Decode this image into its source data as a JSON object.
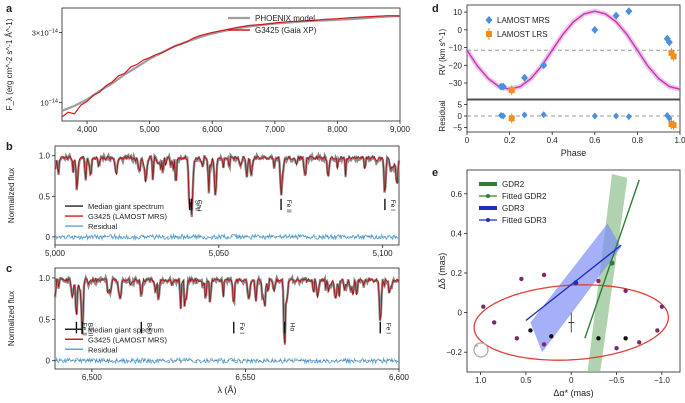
{
  "colors": {
    "model": "#9e9e9e",
    "obs": "#d7191c",
    "median": "#1a1a1a",
    "resid": "#56a7dd",
    "mrs": "#4a90e2",
    "lrs": "#f28e1c",
    "orbit": "#e0403a",
    "gdr2": "#2e7d32",
    "gdr2_fill": "#8fbf8f",
    "gdr3": "#1f2fbf",
    "gdr3_fill": "#7f8ff5",
    "rvfit": "#d62fb0"
  },
  "panels": [
    {
      "key": "a",
      "label": "a",
      "chart_data": {
        "type": "line",
        "xlim": [
          3600,
          9000
        ],
        "ylim_log": [
          7.5e-15,
          4.4e-14
        ],
        "xticks": [
          4000,
          5000,
          6000,
          7000,
          8000,
          9000
        ],
        "xtick_labels": [
          "4,000",
          "5,000",
          "6,000",
          "7,000",
          "8,000",
          "9,000"
        ],
        "yticks": [
          1e-14,
          3e-14
        ],
        "ytick_labels": [
          "10^-14",
          "3×10^-14"
        ],
        "ylabel": "F_λ (erg cm^-2 s^-1 Å^-1)",
        "legend": [
          "PHOENIX model",
          "G3425 (Gaia XP)"
        ],
        "series": [
          {
            "name": "PHOENIX model",
            "x": [
              3600,
              3800,
              4000,
              4200,
              4400,
              4600,
              4800,
              5000,
              5200,
              5400,
              5600,
              5800,
              6000,
              6200,
              6400,
              6600,
              6800,
              7000,
              7200,
              7400,
              7600,
              7800,
              8000,
              8200,
              8400,
              8600,
              8800,
              9000
            ],
            "y": [
              8.8e-15,
              9.5e-15,
              1.05e-14,
              1.2e-14,
              1.35e-14,
              1.55e-14,
              1.75e-14,
              1.98e-14,
              2.2e-14,
              2.42e-14,
              2.6e-14,
              2.78e-14,
              2.95e-14,
              3.08e-14,
              3.2e-14,
              3.3e-14,
              3.38e-14,
              3.45e-14,
              3.5e-14,
              3.55e-14,
              3.6e-14,
              3.62e-14,
              3.66e-14,
              3.7e-14,
              3.74e-14,
              3.8e-14,
              3.85e-14,
              3.88e-14
            ]
          },
          {
            "name": "G3425 (Gaia XP)",
            "x": [
              3600,
              3700,
              3800,
              3900,
              4000,
              4100,
              4200,
              4300,
              4400,
              4500,
              4600,
              4700,
              4800,
              4900,
              5000,
              5100,
              5200,
              5300,
              5400,
              5500,
              5600,
              5700,
              5800,
              6000,
              6200,
              6400,
              6600,
              6800,
              7000,
              7200,
              7400,
              7600,
              7800,
              8000,
              8200,
              8400,
              8600,
              8800,
              9000
            ],
            "y": [
              8e-15,
              8.6e-15,
              8.4e-15,
              9.6e-15,
              1.02e-14,
              1.12e-14,
              1.18e-14,
              1.3e-14,
              1.38e-14,
              1.52e-14,
              1.58e-14,
              1.75e-14,
              1.82e-14,
              1.95e-14,
              2.02e-14,
              2.12e-14,
              2.18e-14,
              2.3e-14,
              2.42e-14,
              2.5e-14,
              2.6e-14,
              2.75e-14,
              2.85e-14,
              3e-14,
              3.12e-14,
              3.25e-14,
              3.35e-14,
              3.4e-14,
              3.48e-14,
              3.55e-14,
              3.58e-14,
              3.62e-14,
              3.68e-14,
              3.72e-14,
              3.78e-14,
              3.82e-14,
              3.86e-14,
              3.9e-14,
              3.88e-14
            ]
          }
        ]
      }
    },
    {
      "key": "b",
      "label": "b",
      "chart_data": {
        "type": "line",
        "xlim": [
          5000,
          5105
        ],
        "ylim": [
          -0.1,
          1.12
        ],
        "xticks": [
          5000,
          5050,
          5100
        ],
        "xtick_labels": [
          "5,000",
          "5,050",
          "5,100"
        ],
        "yticks": [
          0,
          0.5,
          1.0
        ],
        "ytick_labels": [
          "0",
          "0.5",
          "1.0"
        ],
        "ylabel": "Normalized flux",
        "legend": [
          "Median giant spectrum",
          "G3425 (LAMOST MRS)",
          "Residual"
        ],
        "lines": [
          {
            "x": 5041.1,
            "depth": 0.45,
            "label": "Si II"
          },
          {
            "x": 5041.7,
            "depth": 0.5,
            "label": "Ca I"
          },
          {
            "x": 5069.0,
            "depth": 0.4,
            "label": "Fe II"
          },
          {
            "x": 5100.7,
            "depth": 0.45,
            "label": "Fe I"
          }
        ]
      }
    },
    {
      "key": "c",
      "label": "c",
      "chart_data": {
        "type": "line",
        "xlim": [
          6488,
          6600
        ],
        "ylim": [
          -0.1,
          1.12
        ],
        "xticks": [
          6500,
          6550,
          6600
        ],
        "xtick_labels": [
          "6,500",
          "6,550",
          "6,600"
        ],
        "yticks": [
          0,
          0.5,
          1.0
        ],
        "ytick_labels": [
          "0",
          "0.5",
          "1.0"
        ],
        "ylabel": "Normalized flux",
        "xlabel": "λ (Å)",
        "legend": [
          "Median giant spectrum",
          "G3425 (LAMOST MRS)",
          "Residual"
        ],
        "lines": [
          {
            "x": 6494.98,
            "depth": 0.45,
            "label": "Fe II"
          },
          {
            "x": 6496.9,
            "depth": 0.6,
            "label": "Ba II"
          },
          {
            "x": 6516.1,
            "depth": 0.2,
            "label": "Ba I"
          },
          {
            "x": 6546.2,
            "depth": 0.3,
            "label": "Fe I"
          },
          {
            "x": 6562.8,
            "depth": 0.8,
            "label": "Hα"
          },
          {
            "x": 6593.9,
            "depth": 0.35,
            "label": "Fe I"
          }
        ]
      }
    },
    {
      "key": "d",
      "label": "d",
      "chart_data": {
        "type": "scatter",
        "xlim": [
          0,
          1
        ],
        "ylim": [
          -39,
          14
        ],
        "xticks": [
          0,
          0.2,
          0.4,
          0.6,
          0.8,
          1.0
        ],
        "xtick_labels": [
          "0",
          "0.2",
          "0.4",
          "0.6",
          "0.8",
          "1.0"
        ],
        "yticks": [
          -30,
          -20,
          -10,
          0,
          10
        ],
        "ytick_labels": [
          "−30",
          "−20",
          "−10",
          "0",
          "10"
        ],
        "ylabel": "RV (km s^-1)",
        "xlabel": "Phase",
        "systemic": -11.5,
        "legend": [
          "LAMOST MRS",
          "LAMOST LRS"
        ],
        "fit_phase": [
          0,
          0.05,
          0.1,
          0.15,
          0.2,
          0.25,
          0.3,
          0.35,
          0.4,
          0.45,
          0.5,
          0.55,
          0.6,
          0.65,
          0.7,
          0.75,
          0.8,
          0.85,
          0.9,
          0.95,
          1.0
        ],
        "fit_rv": [
          -11.5,
          -20.5,
          -27.5,
          -32.0,
          -33.5,
          -32.0,
          -27.5,
          -20.5,
          -11.5,
          -2.5,
          4.5,
          9.0,
          10.5,
          9.0,
          4.5,
          -2.5,
          -11.5,
          -20.5,
          -27.5,
          -32.0,
          -33.5
        ],
        "series": [
          {
            "name": "LAMOST MRS",
            "phase": [
              0.16,
              0.17,
              0.27,
              0.36,
              0.6,
              0.7,
              0.76,
              0.94,
              0.95
            ],
            "rv": [
              -32.0,
              -32.0,
              -27.0,
              -20.0,
              0.0,
              8.0,
              10.5,
              -5.0,
              -7.0
            ]
          },
          {
            "name": "LAMOST LRS",
            "phase": [
              0.21,
              0.96,
              0.97
            ],
            "rv": [
              -34.0,
              -13.0,
              -15.0
            ]
          }
        ],
        "residual": {
          "ylim": [
            -7,
            7
          ],
          "yticks": [
            -5,
            0,
            5
          ],
          "ytick_labels": [
            "−5",
            "0",
            "5"
          ],
          "ylabel": "Residual",
          "mrs": [
            [
              0.16,
              0.3
            ],
            [
              0.17,
              0.0
            ],
            [
              0.27,
              0.5
            ],
            [
              0.36,
              0.6
            ],
            [
              0.6,
              0.0
            ],
            [
              0.7,
              0.0
            ],
            [
              0.76,
              -0.3
            ],
            [
              0.94,
              0.2
            ],
            [
              0.95,
              -1.0
            ]
          ],
          "lrs": [
            [
              0.21,
              -1.0
            ],
            [
              0.96,
              -3.5
            ],
            [
              0.97,
              -4.0
            ]
          ]
        }
      }
    },
    {
      "key": "e",
      "label": "e",
      "chart_data": {
        "type": "scatter",
        "xlim": [
          1.15,
          -1.2
        ],
        "ylim": [
          -0.3,
          0.72
        ],
        "xticks": [
          1.0,
          0.5,
          0,
          -0.5,
          -1.0
        ],
        "xtick_labels": [
          "1.0",
          "0.5",
          "0",
          "−0.5",
          "−1.0"
        ],
        "yticks": [
          -0.2,
          0,
          0.2,
          0.4,
          0.6
        ],
        "ytick_labels": [
          "−0.2",
          "0",
          "0.2",
          "0.4",
          "0.6"
        ],
        "xlabel": "Δα* (mas)",
        "ylabel": "Δδ (mas)",
        "legend": [
          "GDR2",
          "Fitted GDR2",
          "GDR3",
          "Fitted GDR3"
        ],
        "orbit_ellipse": {
          "center": [
            0.0,
            -0.05
          ],
          "semi_x": 1.08,
          "semi_y": 0.19,
          "tilt_deg": -7
        },
        "orbit_points_purple": [
          [
            0.97,
            0.03
          ],
          [
            0.85,
            -0.05
          ],
          [
            0.6,
            -0.13
          ],
          [
            0.3,
            -0.16
          ],
          [
            -0.5,
            -0.18
          ],
          [
            -0.75,
            -0.15
          ],
          [
            -0.95,
            -0.09
          ],
          [
            -1.0,
            0.03
          ],
          [
            -0.6,
            0.11
          ],
          [
            -0.3,
            0.16
          ],
          [
            0.3,
            0.19
          ],
          [
            0.55,
            0.17
          ]
        ],
        "orbit_points_black": [
          [
            0.45,
            -0.09
          ],
          [
            0.22,
            -0.12
          ],
          [
            -0.3,
            -0.13
          ],
          [
            -0.6,
            -0.13
          ]
        ],
        "central_cross": [
          0.0,
          -0.05
        ],
        "fitted_gdr2": {
          "x": [
            -0.15,
            -0.75
          ],
          "y": [
            -0.13,
            0.67
          ],
          "point": [
            -0.45,
            0.25
          ]
        },
        "fitted_gdr3": {
          "x": [
            0.5,
            -0.55
          ],
          "y": [
            -0.04,
            0.34
          ],
          "point": [
            -0.05,
            0.15
          ]
        },
        "gdr2_band": {
          "x": [
            -0.18,
            -0.45,
            -0.62,
            -0.32
          ],
          "y": [
            -0.3,
            0.7,
            0.68,
            -0.3
          ]
        },
        "gdr3_band": {
          "x": [
            0.32,
            0.45,
            -0.4,
            -0.55
          ],
          "y": [
            -0.2,
            -0.05,
            0.45,
            0.33
          ]
        }
      }
    }
  ]
}
